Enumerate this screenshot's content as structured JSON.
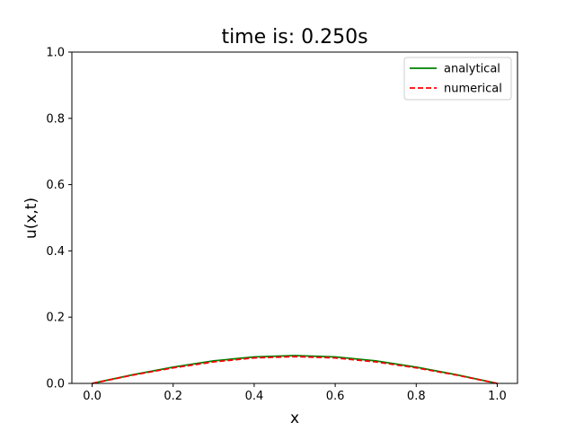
{
  "chart_data": {
    "type": "line",
    "title": "time is: 0.250s",
    "xlabel": "x",
    "ylabel": "u(x,t)",
    "xlim": [
      -0.05,
      1.05
    ],
    "ylim": [
      0.0,
      1.0
    ],
    "xticks": [
      "0.0",
      "0.2",
      "0.4",
      "0.6",
      "0.8",
      "1.0"
    ],
    "yticks": [
      "0.0",
      "0.2",
      "0.4",
      "0.6",
      "0.8",
      "1.0"
    ],
    "grid": false,
    "legend_position": "upper right",
    "x": [
      0.0,
      0.1,
      0.2,
      0.3,
      0.4,
      0.5,
      0.6,
      0.7,
      0.8,
      0.9,
      1.0
    ],
    "series": [
      {
        "name": "analytical",
        "color": "#008000",
        "style": "solid",
        "values": [
          0.0,
          0.026,
          0.049,
          0.068,
          0.08,
          0.084,
          0.08,
          0.068,
          0.049,
          0.026,
          0.0
        ]
      },
      {
        "name": "numerical",
        "color": "#ff0000",
        "style": "dashed",
        "values": [
          0.0,
          0.025,
          0.047,
          0.065,
          0.077,
          0.081,
          0.077,
          0.065,
          0.047,
          0.025,
          0.0
        ]
      }
    ]
  }
}
